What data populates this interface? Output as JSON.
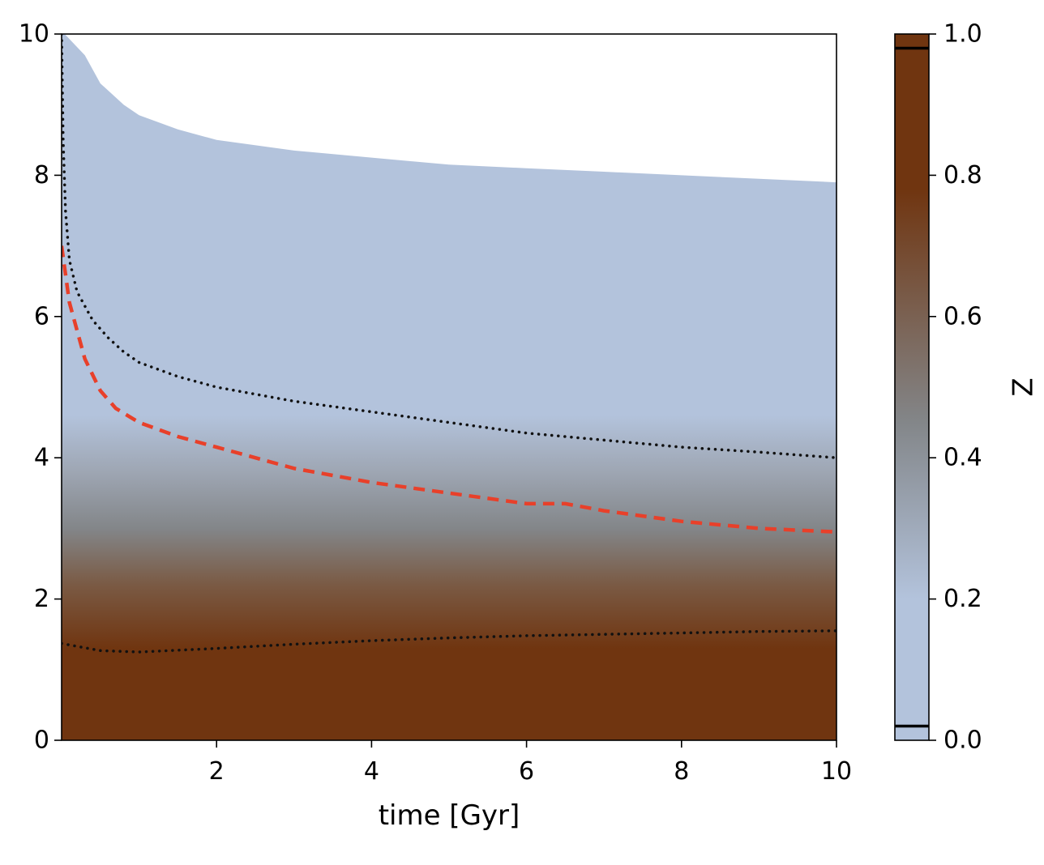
{
  "chart_data": {
    "type": "heatmap",
    "xlabel": "time [Gyr]",
    "ylabel": "",
    "xlim": [
      0,
      10
    ],
    "ylim": [
      0,
      10
    ],
    "x_ticks": [
      {
        "value": 2,
        "label": "2"
      },
      {
        "value": 4,
        "label": "4"
      },
      {
        "value": 6,
        "label": "6"
      },
      {
        "value": 8,
        "label": "8"
      },
      {
        "value": 10,
        "label": "10"
      }
    ],
    "y_ticks": [
      {
        "value": 0,
        "label": "0"
      },
      {
        "value": 2,
        "label": "2"
      },
      {
        "value": 4,
        "label": "4"
      },
      {
        "value": 6,
        "label": "6"
      },
      {
        "value": 8,
        "label": "8"
      },
      {
        "value": 10,
        "label": "10"
      }
    ],
    "grid": false,
    "colorbar": {
      "label": "Z",
      "range": [
        0,
        1
      ],
      "colormap": [
        "#b3c3dc",
        "#838689",
        "#703510"
      ],
      "ticks": [
        {
          "value": 0.0,
          "label": "0.0"
        },
        {
          "value": 0.2,
          "label": "0.2"
        },
        {
          "value": 0.4,
          "label": "0.4"
        },
        {
          "value": 0.6,
          "label": "0.6"
        },
        {
          "value": 0.8,
          "label": "0.8"
        },
        {
          "value": 1.0,
          "label": "1.0"
        }
      ],
      "marker_lines": [
        0.02,
        0.98
      ]
    },
    "colors": {
      "low": "#b3c3dc",
      "mid": "#838689",
      "high": "#703510",
      "dashed_line": "#e8402a",
      "dotted_line": "#111111"
    },
    "series": [
      {
        "style": "upper-boundary",
        "x": [
          0.04,
          0.3,
          0.5,
          0.8,
          1.0,
          1.5,
          2.0,
          3.0,
          4.0,
          5.0,
          6.0,
          7.0,
          8.0,
          9.0,
          10.0
        ],
        "y": [
          10.0,
          9.7,
          9.3,
          9.0,
          8.85,
          8.65,
          8.5,
          8.35,
          8.25,
          8.15,
          8.1,
          8.05,
          8.0,
          7.95,
          7.9
        ]
      },
      {
        "style": "dotted-upper",
        "x": [
          0.0,
          0.02,
          0.05,
          0.1,
          0.2,
          0.4,
          0.6,
          0.8,
          1.0,
          1.5,
          2.0,
          3.0,
          4.0,
          5.0,
          6.0,
          7.0,
          8.0,
          9.0,
          10.0
        ],
        "y": [
          10.0,
          8.5,
          7.5,
          6.8,
          6.35,
          5.95,
          5.7,
          5.5,
          5.35,
          5.15,
          5.0,
          4.8,
          4.65,
          4.5,
          4.35,
          4.25,
          4.15,
          4.08,
          4.0
        ]
      },
      {
        "style": "dashed-red",
        "x": [
          0.0,
          0.1,
          0.2,
          0.3,
          0.5,
          0.7,
          1.0,
          1.5,
          2.0,
          3.0,
          4.0,
          5.0,
          6.0,
          6.5,
          7.0,
          8.0,
          9.0,
          10.0
        ],
        "y": [
          7.0,
          6.2,
          5.8,
          5.4,
          4.95,
          4.7,
          4.5,
          4.3,
          4.15,
          3.85,
          3.65,
          3.5,
          3.35,
          3.35,
          3.25,
          3.1,
          3.0,
          2.95
        ]
      },
      {
        "style": "dotted-lower",
        "x": [
          0.0,
          0.5,
          1.0,
          2.0,
          3.0,
          4.0,
          5.0,
          6.0,
          7.0,
          8.0,
          9.0,
          10.0
        ],
        "y": [
          1.37,
          1.27,
          1.25,
          1.3,
          1.36,
          1.41,
          1.45,
          1.48,
          1.5,
          1.52,
          1.54,
          1.55
        ]
      }
    ]
  }
}
